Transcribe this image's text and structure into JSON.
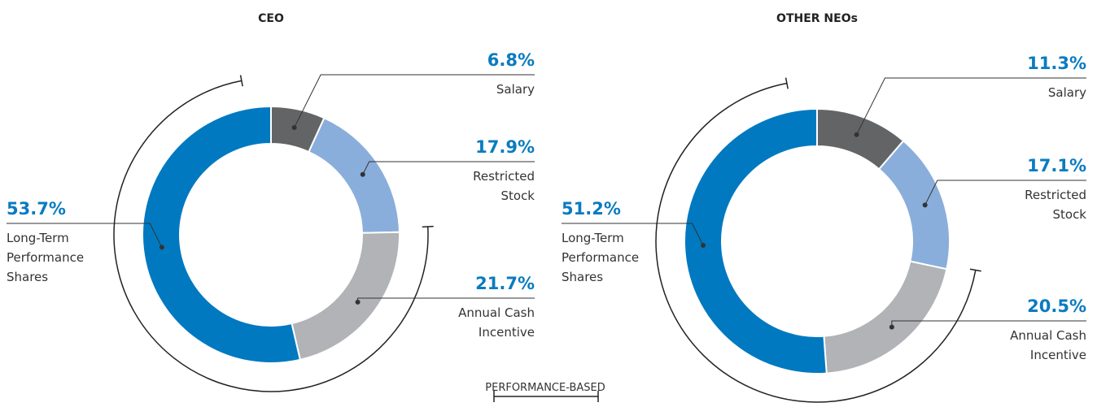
{
  "chart_data": [
    {
      "type": "pie",
      "title": "CEO",
      "categories": [
        "Salary",
        "Restricted Stock",
        "Annual Cash Incentive",
        "Long-Term Performance Shares"
      ],
      "values": [
        6.8,
        17.9,
        21.7,
        53.7
      ],
      "value_labels": [
        "6.8%",
        "17.9%",
        "21.7%",
        "53.7%"
      ],
      "colors": [
        "#636466",
        "#8aaedb",
        "#b1b3b6",
        "#0079c1"
      ],
      "performance_based": [
        false,
        false,
        true,
        true
      ]
    },
    {
      "type": "pie",
      "title": "OTHER NEOs",
      "categories": [
        "Salary",
        "Restricted Stock",
        "Annual Cash Incentive",
        "Long-Term Performance Shares"
      ],
      "values": [
        11.3,
        17.1,
        20.5,
        51.2
      ],
      "value_labels": [
        "11.3%",
        "17.1%",
        "20.5%",
        "51.2%"
      ],
      "colors": [
        "#636466",
        "#8aaedb",
        "#b1b3b6",
        "#0079c1"
      ],
      "performance_based": [
        false,
        false,
        true,
        true
      ]
    }
  ],
  "performance_legend": "PERFORMANCE-BASED"
}
